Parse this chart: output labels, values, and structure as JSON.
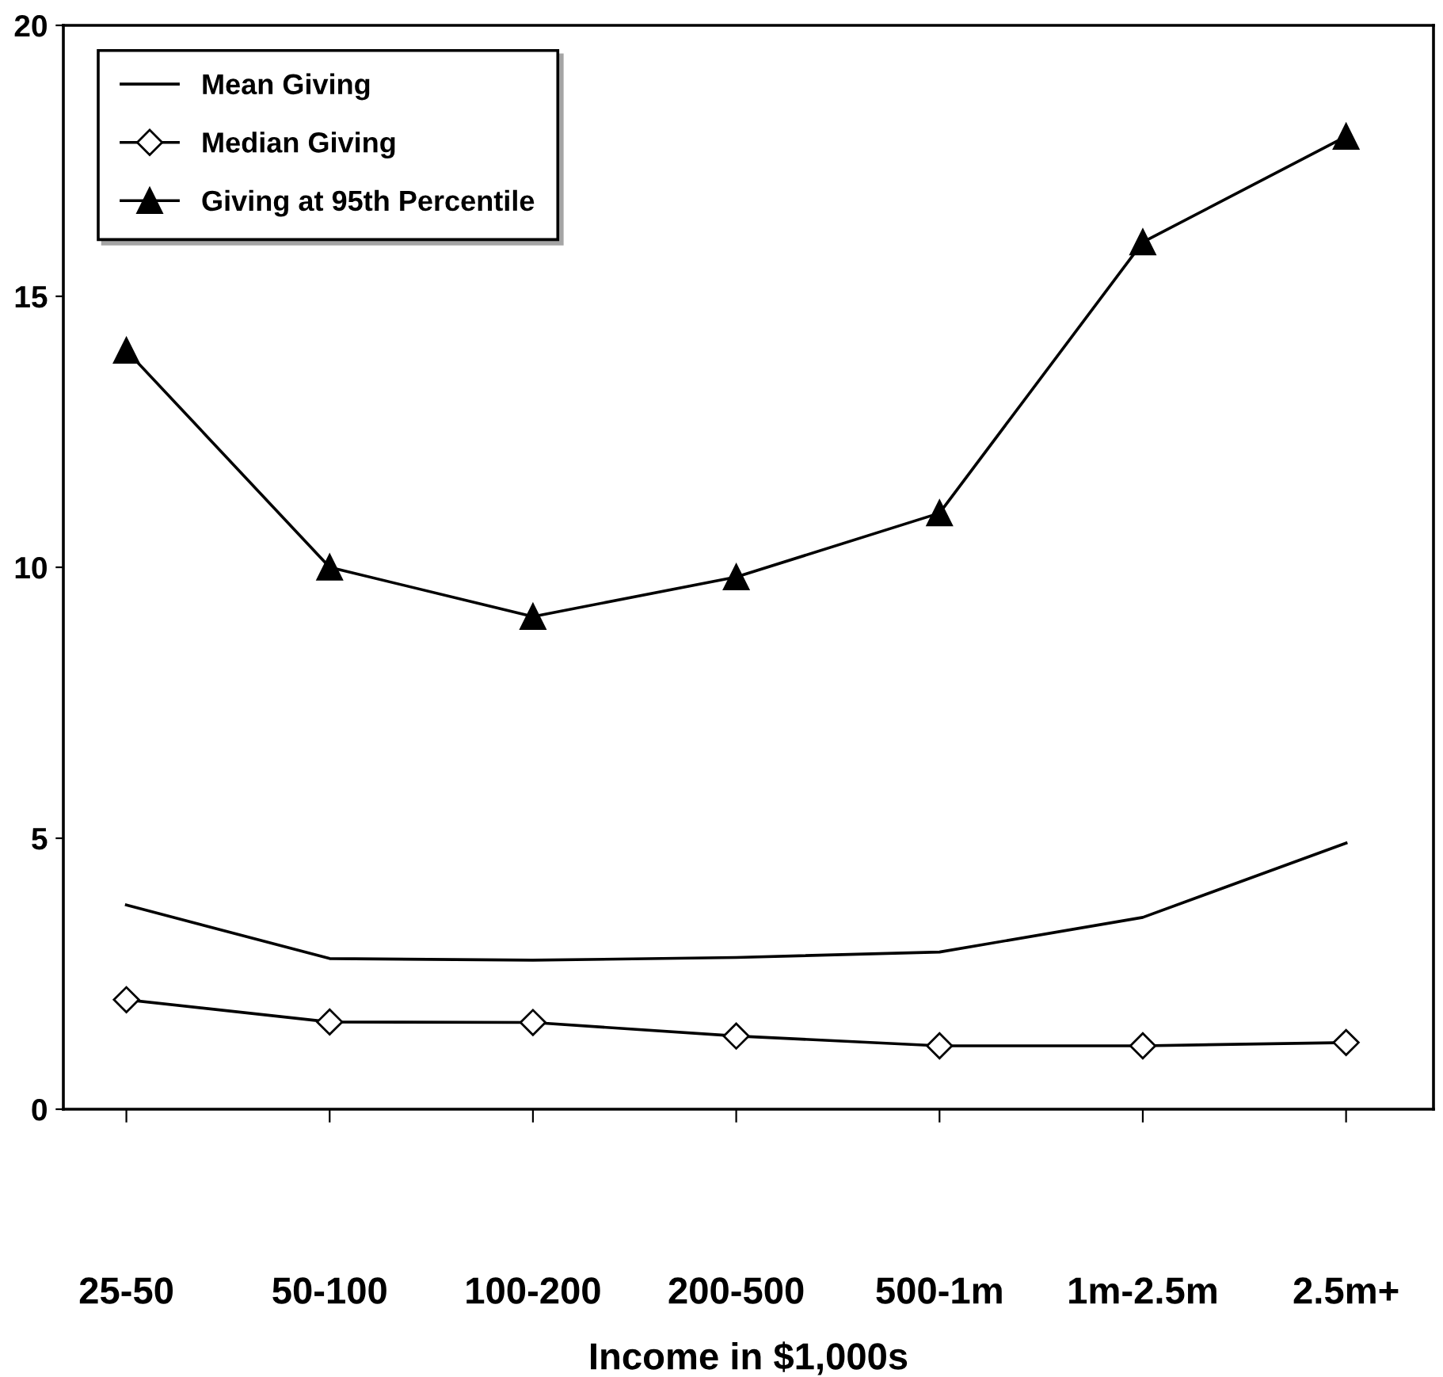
{
  "chart_data": {
    "type": "line",
    "xlabel": "Income in $1,000s",
    "categories": [
      "25-50",
      "50-100",
      "100-200",
      "200-500",
      "500-1m",
      "1m-2.5m",
      "2.5m+"
    ],
    "series": [
      {
        "name": "Mean Giving",
        "color": "#000000",
        "marker": "none",
        "values": [
          3.77,
          2.78,
          2.75,
          2.8,
          2.9,
          3.54,
          4.91
        ]
      },
      {
        "name": "Median Giving",
        "color": "#000000",
        "marker": "diamond",
        "values": [
          2.02,
          1.61,
          1.6,
          1.35,
          1.17,
          1.17,
          1.23
        ]
      },
      {
        "name": "Giving at 95th Percentile",
        "color": "#000000",
        "marker": "triangle",
        "values": [
          14,
          10,
          9.09,
          9.82,
          11,
          16,
          17.95
        ]
      }
    ],
    "ylim": [
      0,
      20
    ],
    "yticks": [
      0,
      5,
      10,
      15,
      20
    ],
    "grid": false,
    "legend": "top left",
    "line_style": "solid"
  }
}
